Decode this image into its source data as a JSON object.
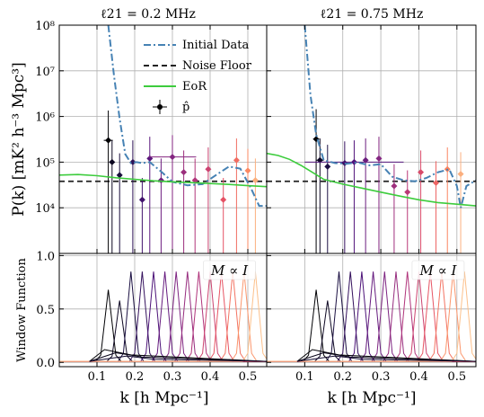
{
  "figure": {
    "ylabel_top": "P(k) [mK² h⁻³ Mpc³]",
    "ylabel_bottom": "Window Function",
    "xlabel": "k [h Mpc⁻¹]"
  },
  "legend": {
    "initial": "Initial Data",
    "noise": "Noise Floor",
    "eor": "EoR",
    "phat": "p̂"
  },
  "colors": {
    "initial": "#4682b4",
    "noise": "#222222",
    "eor": "#3dcc3d",
    "grid": "#b0b0b0"
  },
  "chart_data": [
    {
      "type": "line",
      "panel": "top-left",
      "title": "ℓ21 = 0.2 MHz",
      "xlim": [
        0.0,
        0.55
      ],
      "ylim": [
        1000,
        100000000
      ],
      "yscale": "log",
      "grid": true,
      "legend_position": "top-right",
      "xticks": [
        0.1,
        0.2,
        0.3,
        0.4,
        0.5
      ],
      "yticks": [
        10000,
        100000,
        1000000,
        10000000,
        100000000
      ],
      "ytick_labels": [
        "10⁴",
        "10⁵",
        "10⁶",
        "10⁷",
        "10⁸"
      ],
      "noise_floor": 38000,
      "series": [
        {
          "name": "Initial Data",
          "style": "dashdot",
          "x": [
            0.13,
            0.145,
            0.16,
            0.175,
            0.19,
            0.205,
            0.22,
            0.24,
            0.27,
            0.3,
            0.34,
            0.38,
            0.42,
            0.45,
            0.48,
            0.51,
            0.53,
            0.55
          ],
          "y": [
            100000000,
            8000000,
            900000,
            150000,
            95000,
            100000,
            95000,
            100000,
            62000,
            37000,
            31000,
            33000,
            55000,
            80000,
            72000,
            25000,
            11000,
            11000
          ]
        },
        {
          "name": "EoR",
          "style": "solid",
          "x": [
            0.0,
            0.05,
            0.1,
            0.15,
            0.2,
            0.25,
            0.3,
            0.35,
            0.4,
            0.45,
            0.5,
            0.55
          ],
          "y": [
            52000,
            53500,
            50500,
            45500,
            42000,
            39000,
            37000,
            35500,
            34000,
            32500,
            30500,
            29000
          ]
        }
      ],
      "points": {
        "name": "p̂",
        "x": [
          0.13,
          0.14,
          0.16,
          0.195,
          0.22,
          0.24,
          0.27,
          0.3,
          0.33,
          0.36,
          0.395,
          0.435,
          0.47,
          0.5,
          0.52
        ],
        "y": [
          300000,
          100000,
          52000,
          100000,
          15000,
          120000,
          40000,
          130000,
          60000,
          40000,
          70000,
          15000,
          110000,
          65000,
          40000
        ],
        "xerr": [
          0.012,
          0.007,
          0,
          0.006,
          0,
          0,
          0,
          0.063,
          0,
          0,
          0,
          0,
          0,
          0,
          0
        ]
      }
    },
    {
      "type": "line",
      "panel": "top-right",
      "title": "ℓ21 = 0.75 MHz",
      "xlim": [
        0.0,
        0.55
      ],
      "ylim": [
        1000,
        100000000
      ],
      "yscale": "log",
      "grid": true,
      "xticks": [
        0.1,
        0.2,
        0.3,
        0.4,
        0.5
      ],
      "noise_floor": 38000,
      "series": [
        {
          "name": "Initial Data",
          "style": "dashdot",
          "x": [
            0.1,
            0.115,
            0.13,
            0.15,
            0.18,
            0.21,
            0.24,
            0.27,
            0.3,
            0.33,
            0.36,
            0.39,
            0.42,
            0.45,
            0.48,
            0.5,
            0.51,
            0.525,
            0.55
          ],
          "y": [
            100000000,
            3000000,
            400000,
            110000,
            95000,
            92000,
            98000,
            85000,
            90000,
            48000,
            40000,
            38000,
            45000,
            60000,
            70000,
            30000,
            10000,
            30000,
            40000
          ]
        },
        {
          "name": "EoR",
          "style": "solid",
          "x": [
            0.0,
            0.03,
            0.06,
            0.09,
            0.12,
            0.15,
            0.2,
            0.25,
            0.3,
            0.35,
            0.4,
            0.45,
            0.5,
            0.55
          ],
          "y": [
            155000,
            140000,
            115000,
            85000,
            60000,
            42000,
            33000,
            27000,
            22000,
            18000,
            15000,
            13000,
            12000,
            11000
          ]
        }
      ],
      "points": {
        "name": "p̂",
        "x": [
          0.13,
          0.14,
          0.16,
          0.205,
          0.23,
          0.26,
          0.295,
          0.335,
          0.37,
          0.405,
          0.445,
          0.475,
          0.51
        ],
        "y": [
          320000,
          110000,
          80000,
          95000,
          100000,
          110000,
          120000,
          30000,
          22000,
          60000,
          35000,
          70000,
          55000
        ],
        "xerr": [
          0.008,
          0.01,
          0,
          0,
          0.13,
          0,
          0,
          0,
          0,
          0,
          0,
          0,
          0
        ]
      }
    },
    {
      "type": "line",
      "panel": "bottom-left",
      "annotation": "M ∝ I",
      "xlim": [
        0.0,
        0.55
      ],
      "ylim": [
        -0.04,
        1.02
      ],
      "yticks": [
        0.0,
        0.5,
        1.0
      ],
      "ytick_labels": [
        "0.0",
        "0.5",
        "1.0"
      ],
      "xticks": [
        0.1,
        0.2,
        0.3,
        0.4,
        0.5
      ],
      "xtick_labels": [
        "0.1",
        "0.2",
        "0.3",
        "0.4",
        "0.5"
      ],
      "window_centers": [
        0.13,
        0.16,
        0.19,
        0.22,
        0.25,
        0.28,
        0.31,
        0.34,
        0.37,
        0.4,
        0.43,
        0.46,
        0.49,
        0.52
      ],
      "window_peak": 0.68,
      "window_halfwidth": 0.02
    },
    {
      "type": "line",
      "panel": "bottom-right",
      "annotation": "M ∝ I",
      "xlim": [
        0.0,
        0.55
      ],
      "ylim": [
        -0.04,
        1.02
      ],
      "yticks": [
        0.0,
        0.5,
        1.0
      ],
      "xticks": [
        0.1,
        0.2,
        0.3,
        0.4,
        0.5
      ],
      "xtick_labels": [
        "0.1",
        "0.2",
        "0.3",
        "0.4",
        "0.5"
      ],
      "window_centers": [
        0.13,
        0.16,
        0.19,
        0.22,
        0.25,
        0.28,
        0.31,
        0.34,
        0.37,
        0.4,
        0.43,
        0.46,
        0.49,
        0.52
      ],
      "window_peak": 0.68,
      "window_halfwidth": 0.02
    }
  ]
}
